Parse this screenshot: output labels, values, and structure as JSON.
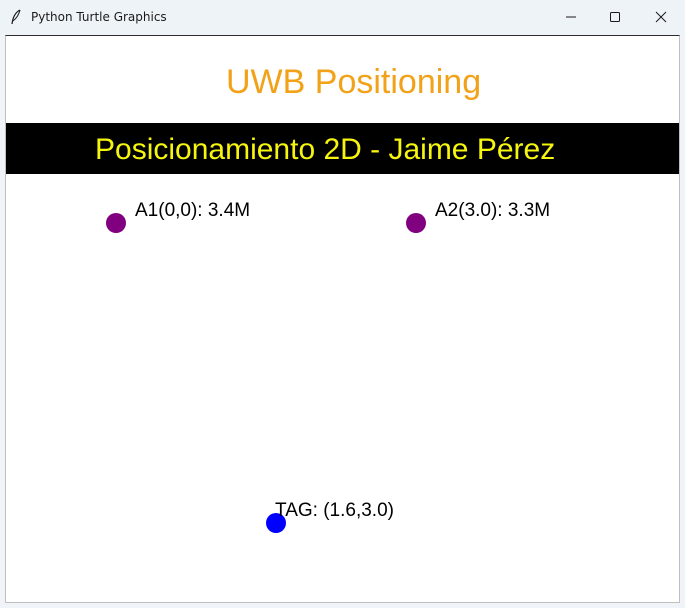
{
  "window": {
    "title": "Python Turtle Graphics",
    "app_icon": "feather-icon",
    "controls": {
      "minimize_icon": "minimize-icon",
      "maximize_icon": "maximize-icon",
      "close_icon": "close-icon"
    }
  },
  "canvas": {
    "title": "UWB Positioning",
    "title_color": "#f2a218",
    "banner": {
      "text": "Posicionamiento 2D - Jaime Pérez",
      "text_color": "#f5f50f",
      "background": "#000000"
    },
    "anchors": [
      {
        "label": "A1(0,0): 3.4M",
        "color": "#800080"
      },
      {
        "label": "A2(3.0): 3.3M",
        "color": "#800080"
      }
    ],
    "tag": {
      "label": "TAG: (1.6,3.0)",
      "color": "#0000ff"
    }
  }
}
